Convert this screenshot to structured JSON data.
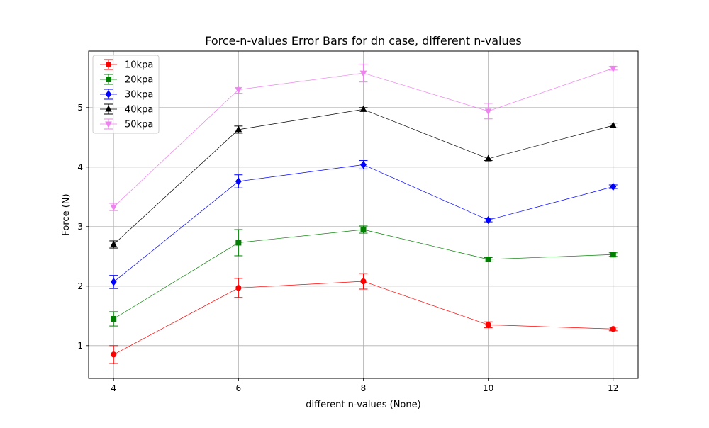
{
  "chart_data": {
    "type": "line",
    "title": "Force-n-values Error Bars for dn case, different n-values",
    "xlabel": "different n-values (None)",
    "ylabel": "Force (N)",
    "xlim": [
      3.6,
      12.4
    ],
    "ylim": [
      0.45,
      5.95
    ],
    "x": [
      4,
      6,
      8,
      10,
      12
    ],
    "xticks": [
      "4",
      "6",
      "8",
      "10",
      "12"
    ],
    "yticks": [
      1,
      2,
      3,
      4,
      5
    ],
    "yticklabels": [
      "1",
      "2",
      "3",
      "4",
      "5"
    ],
    "grid": true,
    "legend_position": "upper-left",
    "series": [
      {
        "name": "10kpa",
        "color": "#ff0000",
        "marker": "circle",
        "values": [
          0.85,
          1.97,
          2.08,
          1.35,
          1.28
        ],
        "errors": [
          0.15,
          0.16,
          0.13,
          0.05,
          0.03
        ]
      },
      {
        "name": "20kpa",
        "color": "#008000",
        "marker": "square",
        "values": [
          1.45,
          2.73,
          2.95,
          2.45,
          2.53
        ],
        "errors": [
          0.12,
          0.22,
          0.06,
          0.03,
          0.03
        ]
      },
      {
        "name": "30kpa",
        "color": "#0000ff",
        "marker": "diamond",
        "values": [
          2.07,
          3.76,
          4.04,
          3.11,
          3.67
        ],
        "errors": [
          0.11,
          0.11,
          0.07,
          0.03,
          0.03
        ]
      },
      {
        "name": "40kpa",
        "color": "#000000",
        "marker": "triangle-up",
        "values": [
          2.7,
          4.63,
          4.97,
          4.14,
          4.7
        ],
        "errors": [
          0.06,
          0.06,
          0.03,
          0.03,
          0.04
        ]
      },
      {
        "name": "50kpa",
        "color": "#ee82ee",
        "marker": "triangle-down",
        "values": [
          3.33,
          5.3,
          5.58,
          4.94,
          5.66
        ],
        "errors": [
          0.06,
          0.06,
          0.15,
          0.13,
          0.03
        ]
      }
    ]
  }
}
